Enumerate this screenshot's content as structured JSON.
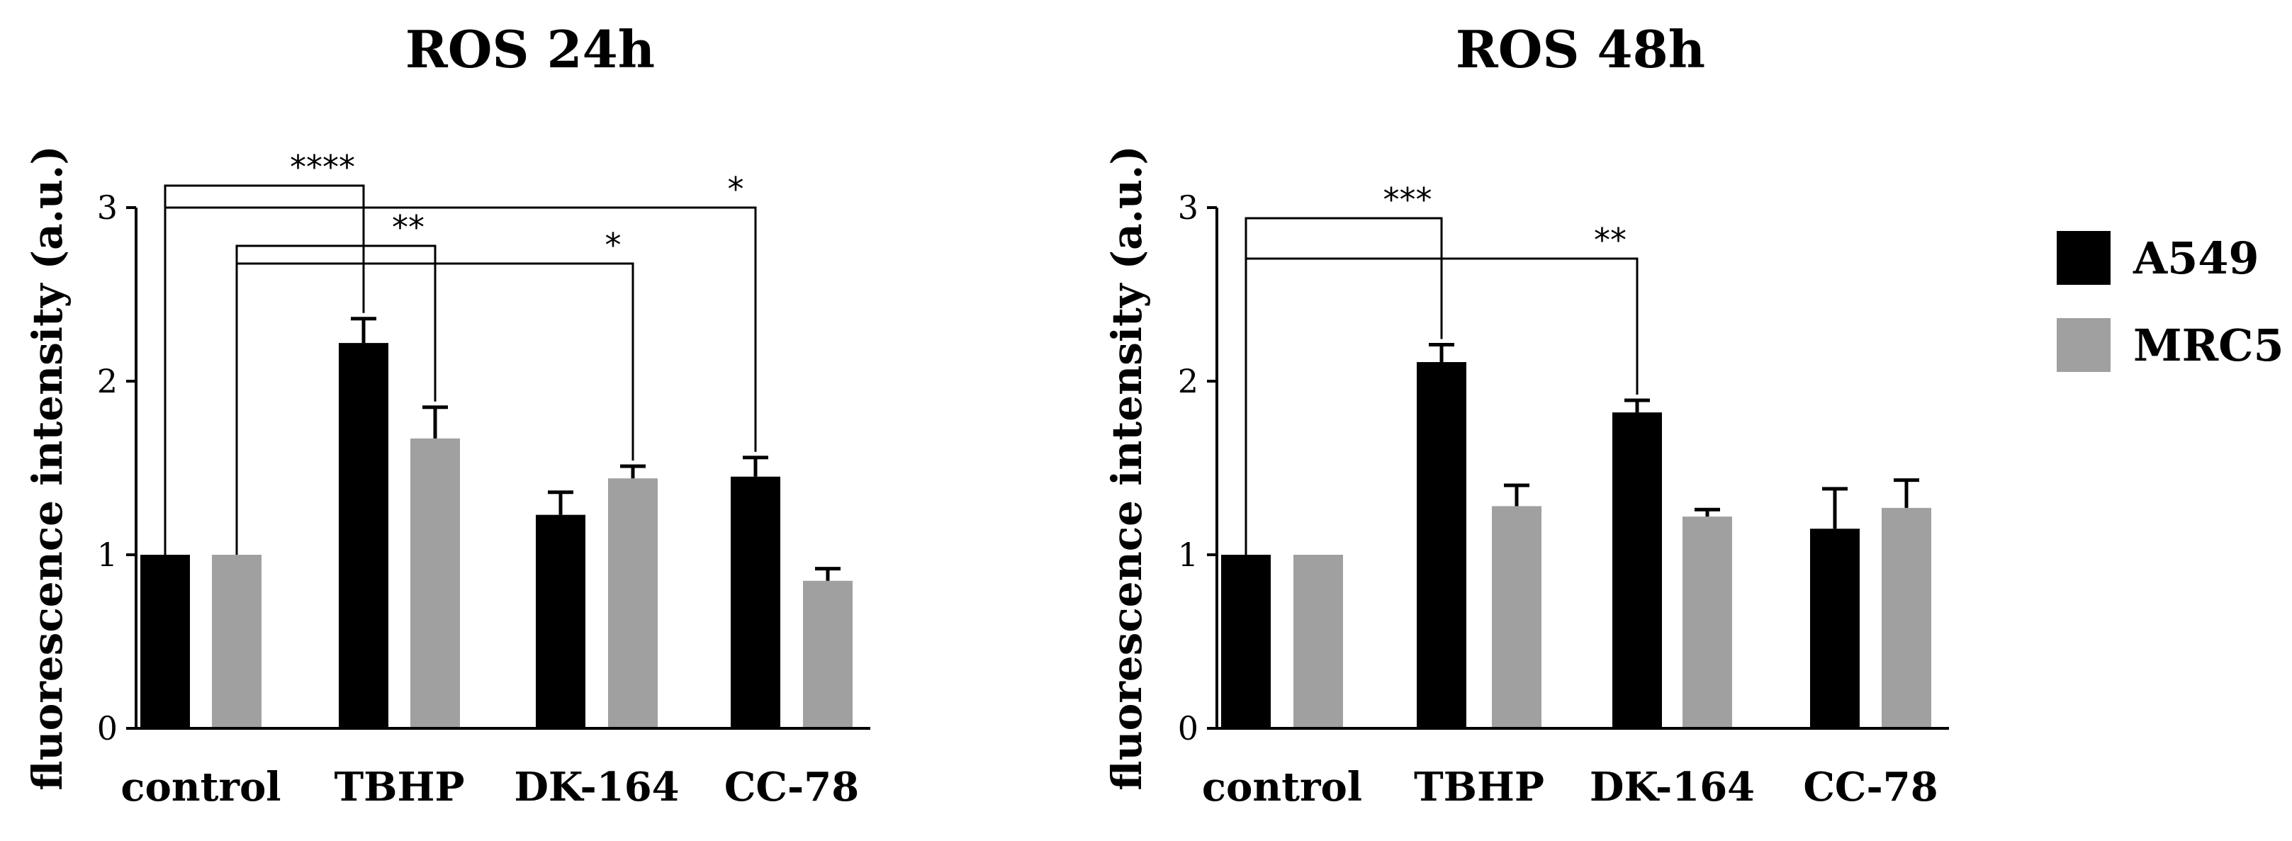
{
  "colors": {
    "A549": "#000000",
    "MRC5": "#a0a0a1",
    "axis": "#000000"
  },
  "legend": [
    {
      "name": "A549",
      "color": "#000000"
    },
    {
      "name": "MRC5",
      "color": "#a0a0a1"
    }
  ],
  "chart_data": [
    {
      "type": "bar",
      "title": "ROS 24h",
      "xlabel": "",
      "ylabel": "fluorescence intensity (a.u.)",
      "ylim": [
        0,
        3
      ],
      "yticks": [
        0,
        1,
        2,
        3
      ],
      "categories": [
        "control",
        "TBHP",
        "DK-164",
        "CC-78"
      ],
      "series": [
        {
          "name": "A549",
          "values": [
            1.0,
            2.22,
            1.23,
            1.45
          ],
          "errors": [
            0,
            0.14,
            0.13,
            0.11
          ]
        },
        {
          "name": "MRC5",
          "values": [
            1.0,
            1.67,
            1.44,
            0.85
          ],
          "errors": [
            0,
            0.18,
            0.07,
            0.07
          ]
        }
      ],
      "significance": [
        {
          "label": "****",
          "from": {
            "series": 0,
            "category": 0
          },
          "to": {
            "series": 0,
            "category": 1
          }
        },
        {
          "label": "**",
          "from": {
            "series": 1,
            "category": 0
          },
          "to": {
            "series": 1,
            "category": 1
          }
        },
        {
          "label": "*",
          "from": {
            "series": 1,
            "category": 0
          },
          "to": {
            "series": 1,
            "category": 2
          }
        },
        {
          "label": "*",
          "from": {
            "series": 0,
            "category": 0
          },
          "to": {
            "series": 0,
            "category": 3
          }
        }
      ]
    },
    {
      "type": "bar",
      "title": "ROS 48h",
      "xlabel": "",
      "ylabel": "fluorescence intensity (a.u.)",
      "ylim": [
        0,
        3
      ],
      "yticks": [
        0,
        1,
        2,
        3
      ],
      "categories": [
        "control",
        "TBHP",
        "DK-164",
        "CC-78"
      ],
      "series": [
        {
          "name": "A549",
          "values": [
            1.0,
            2.11,
            1.82,
            1.15
          ],
          "errors": [
            0,
            0.1,
            0.07,
            0.23
          ]
        },
        {
          "name": "MRC5",
          "values": [
            1.0,
            1.28,
            1.22,
            1.27
          ],
          "errors": [
            0,
            0.12,
            0.04,
            0.16
          ]
        }
      ],
      "significance": [
        {
          "label": "***",
          "from": {
            "series": 0,
            "category": 0
          },
          "to": {
            "series": 0,
            "category": 1
          }
        },
        {
          "label": "**",
          "from": {
            "series": 0,
            "category": 0
          },
          "to": {
            "series": 0,
            "category": 2
          }
        }
      ]
    }
  ]
}
